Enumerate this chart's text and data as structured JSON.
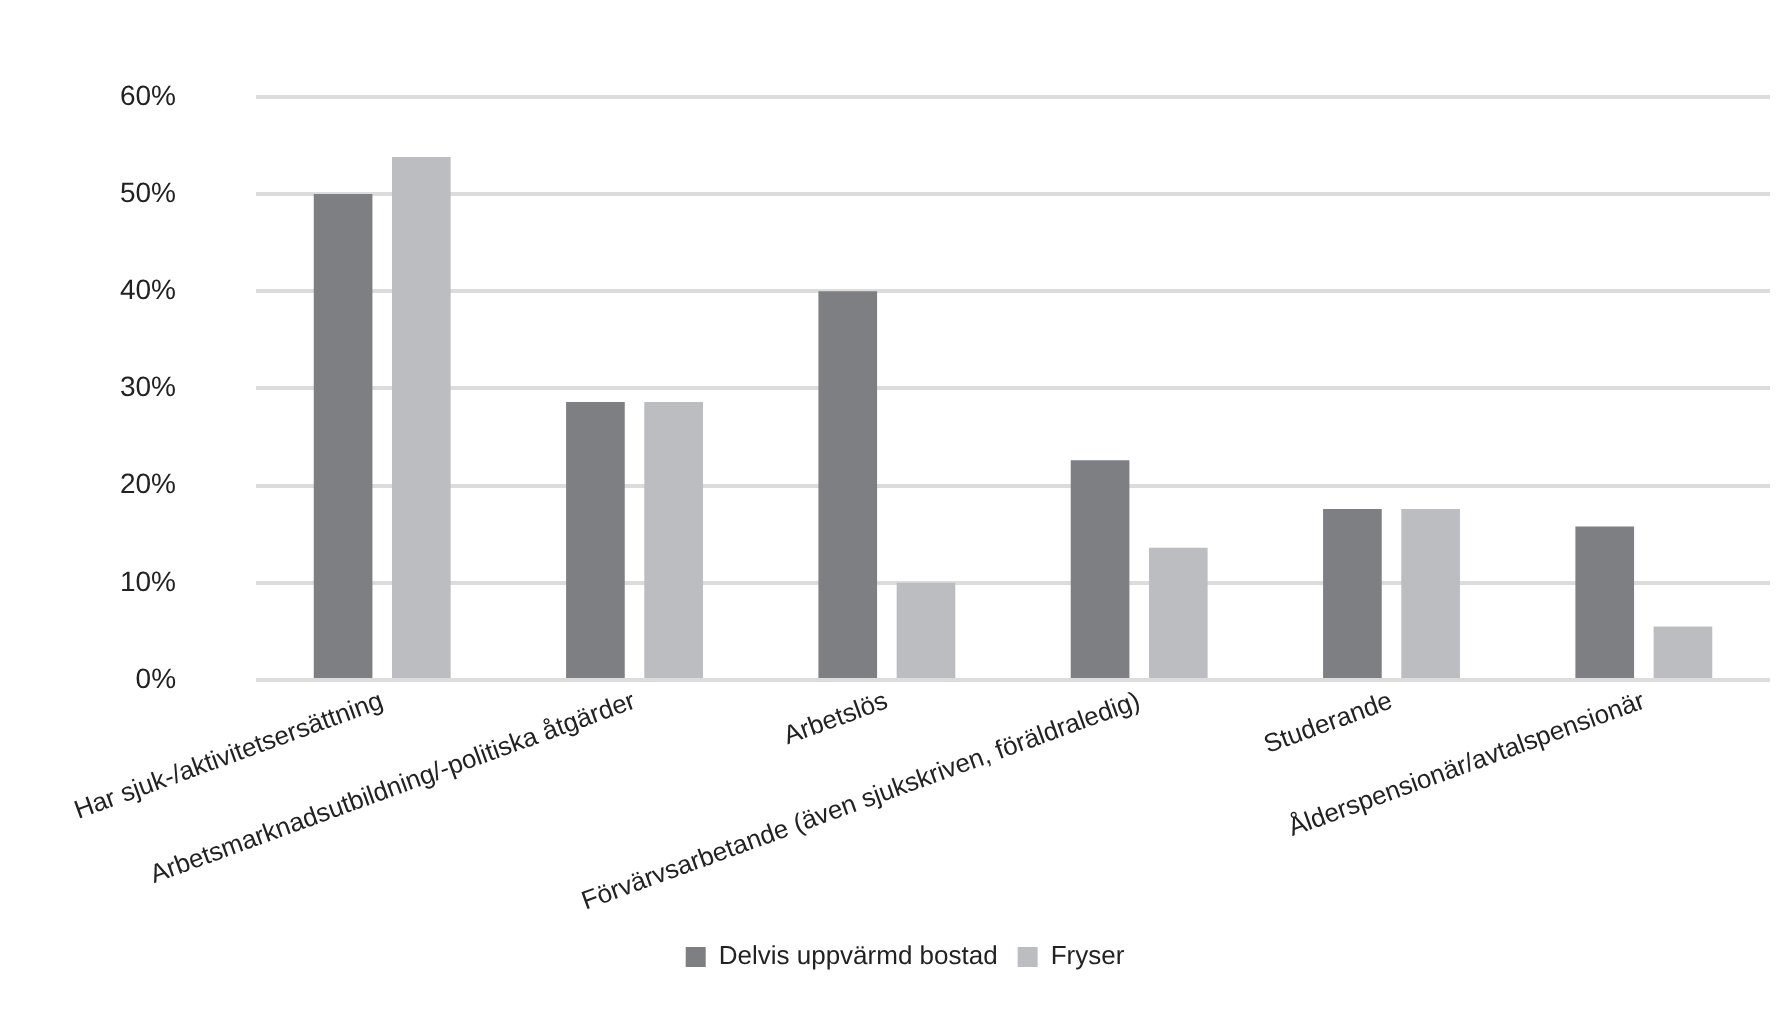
{
  "chart_data": {
    "type": "bar",
    "categories": [
      "Har sjuk-/aktivitetsersättning",
      "Arbetsmarknadsutbildning/-politiska åtgärder",
      "Arbetslös",
      "Förvärvsarbetande (även sjukskriven, föräldraledig)",
      "Studerande",
      "Ålderspensionär/avtalspensionär"
    ],
    "series": [
      {
        "name": "Delvis uppvärmd bostad",
        "color": "#7e7f83",
        "values": [
          50,
          28.6,
          40,
          22.6,
          17.6,
          15.8
        ]
      },
      {
        "name": "Fryser",
        "color": "#bcbdc1",
        "values": [
          53.8,
          28.6,
          10,
          13.6,
          17.6,
          5.5
        ]
      }
    ],
    "ylim": [
      0,
      60
    ],
    "yticks": [
      {
        "value": 0,
        "label": "0%"
      },
      {
        "value": 10,
        "label": "10%"
      },
      {
        "value": 20,
        "label": "20%"
      },
      {
        "value": 30,
        "label": "30%"
      },
      {
        "value": 40,
        "label": "40%"
      },
      {
        "value": 50,
        "label": "50%"
      },
      {
        "value": 60,
        "label": "60%"
      }
    ],
    "grid": "y",
    "legend": "bottom"
  }
}
